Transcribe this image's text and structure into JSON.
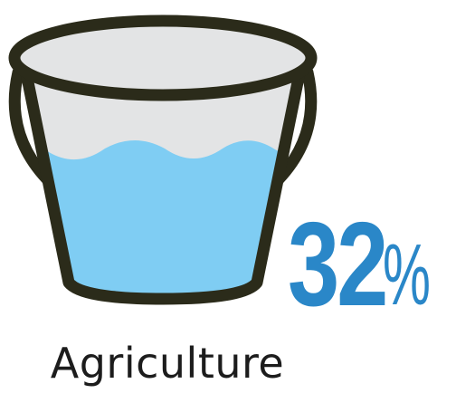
{
  "stat": {
    "value": "32",
    "unit": "%"
  },
  "caption": "Agriculture",
  "bucket": {
    "icon": "water-bucket-icon",
    "fill_level": 0.65
  },
  "colors": {
    "outline": "#2b2b1a",
    "water": "#7fcdf3",
    "air": "#e3e4e5",
    "stat": "#2a87c8",
    "caption": "#1c1c1c"
  }
}
